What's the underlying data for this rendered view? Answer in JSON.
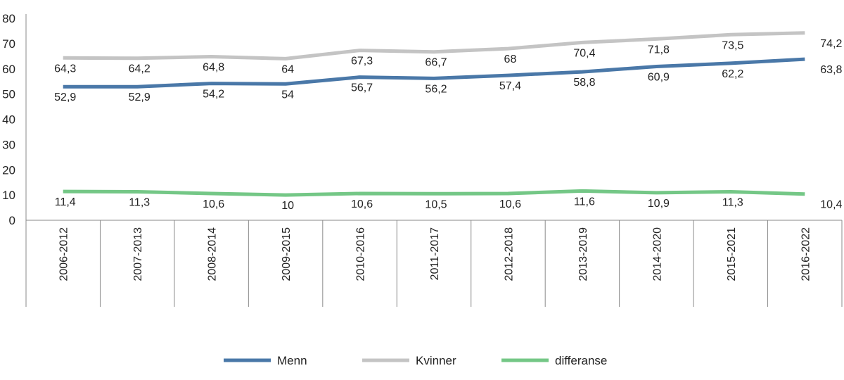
{
  "chart_data": {
    "type": "line",
    "title": "",
    "xlabel": "",
    "ylabel": "",
    "ylim": [
      0,
      80
    ],
    "yticks": [
      0,
      10,
      20,
      30,
      40,
      50,
      60,
      70,
      80
    ],
    "grid": false,
    "legend_position": "bottom",
    "categories": [
      "2006-2012",
      "2007-2013",
      "2008-2014",
      "2009-2015",
      "2010-2016",
      "2011-2017",
      "2012-2018",
      "2013-2019",
      "2014-2020",
      "2015-2021",
      "2016-2022"
    ],
    "series": [
      {
        "name": "Menn",
        "color": "#4a78a8",
        "values": [
          52.9,
          52.9,
          54.2,
          54,
          56.7,
          56.2,
          57.4,
          58.8,
          60.9,
          62.2,
          63.8
        ],
        "labels": [
          "52,9",
          "52,9",
          "54,2",
          "54",
          "56,7",
          "56,2",
          "57,4",
          "58,8",
          "60,9",
          "62,2",
          "63,8"
        ]
      },
      {
        "name": "Kvinner",
        "color": "#c4c4c4",
        "values": [
          64.3,
          64.2,
          64.8,
          64,
          67.3,
          66.7,
          68,
          70.4,
          71.8,
          73.5,
          74.2
        ],
        "labels": [
          "64,3",
          "64,2",
          "64,8",
          "64",
          "67,3",
          "66,7",
          "68",
          "70,4",
          "71,8",
          "73,5",
          "74,2"
        ]
      },
      {
        "name": "differanse",
        "color": "#74c786",
        "values": [
          11.4,
          11.3,
          10.6,
          10,
          10.6,
          10.5,
          10.6,
          11.6,
          10.9,
          11.3,
          10.4
        ],
        "labels": [
          "11,4",
          "11,3",
          "10,6",
          "10",
          "10,6",
          "10,5",
          "10,6",
          "11,6",
          "10,9",
          "11,3",
          "10,4"
        ]
      }
    ]
  }
}
